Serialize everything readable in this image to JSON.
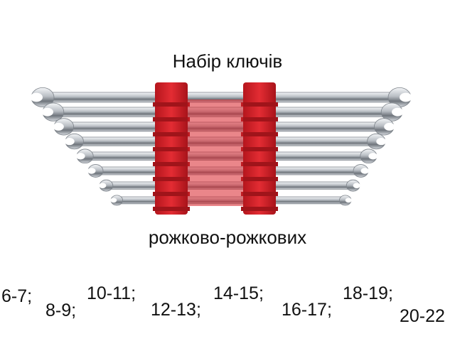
{
  "title": "Набір ключів",
  "subtitle": "рожково-рожкових",
  "sizes": [
    "6-7;",
    "8-9;",
    "10-11;",
    "12-13;",
    "14-15;",
    "16-17;",
    "18-19;",
    "20-22"
  ],
  "photo": {
    "subject": "set of double open-ended wrenches in a red plastic holder",
    "wrench_count": 8,
    "colors": {
      "holder": "#d8232a",
      "holder_dark": "#a0141a",
      "steel_light": "#e9ecef",
      "steel_dark": "#7d838a"
    }
  }
}
